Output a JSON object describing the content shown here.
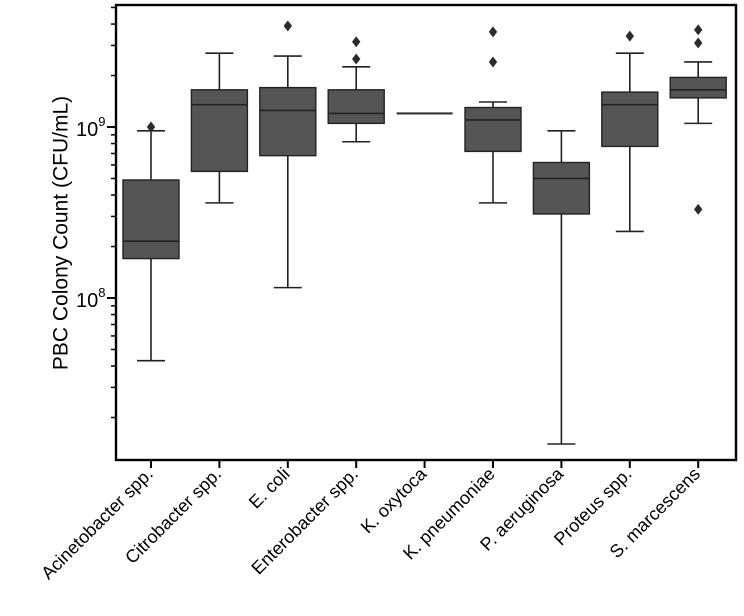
{
  "chart_data": {
    "type": "box",
    "title": "",
    "xlabel": "",
    "ylabel": "PBC Colony Count (CFU/mL)",
    "yscale": "log",
    "ylim": [
      12000000,
      6000000000
    ],
    "major_ticks": [
      {
        "base": "10",
        "exp": "8",
        "value": 100000000
      },
      {
        "base": "10",
        "exp": "9",
        "value": 1000000000
      }
    ],
    "box_color": "#555555",
    "categories": [
      "Acinetobacter spp.",
      "Citrobacter spp.",
      "E. coli",
      "Enterobacter spp.",
      "K. oxytoca",
      "K. pneumoniae",
      "P. aeruginosa",
      "Proteus spp.",
      "S. marcescens"
    ],
    "boxes": [
      {
        "whislo": 43000000,
        "q1": 170000000,
        "med": 215000000,
        "q3": 490000000,
        "whishi": 950000000,
        "fliers": [
          1000000000
        ]
      },
      {
        "whislo": 360000000,
        "q1": 550000000,
        "med": 1350000000,
        "q3": 1650000000,
        "whishi": 2700000000,
        "fliers": []
      },
      {
        "whislo": 115000000,
        "q1": 680000000,
        "med": 1250000000,
        "q3": 1700000000,
        "whishi": 2600000000,
        "fliers": [
          3900000000
        ]
      },
      {
        "whislo": 820000000,
        "q1": 1050000000,
        "med": 1200000000,
        "q3": 1650000000,
        "whishi": 2250000000,
        "fliers": [
          2500000000,
          3150000000
        ]
      },
      {
        "whislo": 1200000000,
        "q1": 1200000000,
        "med": 1200000000,
        "q3": 1200000000,
        "whishi": 1200000000,
        "fliers": []
      },
      {
        "whislo": 360000000,
        "q1": 720000000,
        "med": 1100000000,
        "q3": 1300000000,
        "whishi": 1400000000,
        "fliers": [
          2400000000,
          3600000000
        ]
      },
      {
        "whislo": 14000000,
        "q1": 310000000,
        "med": 500000000,
        "q3": 620000000,
        "whishi": 950000000,
        "fliers": []
      },
      {
        "whislo": 245000000,
        "q1": 770000000,
        "med": 1350000000,
        "q3": 1600000000,
        "whishi": 2700000000,
        "fliers": [
          3400000000
        ]
      },
      {
        "whislo": 1050000000,
        "q1": 1480000000,
        "med": 1650000000,
        "q3": 1950000000,
        "whishi": 2400000000,
        "fliers": [
          330000000,
          3100000000,
          3700000000
        ]
      }
    ]
  }
}
